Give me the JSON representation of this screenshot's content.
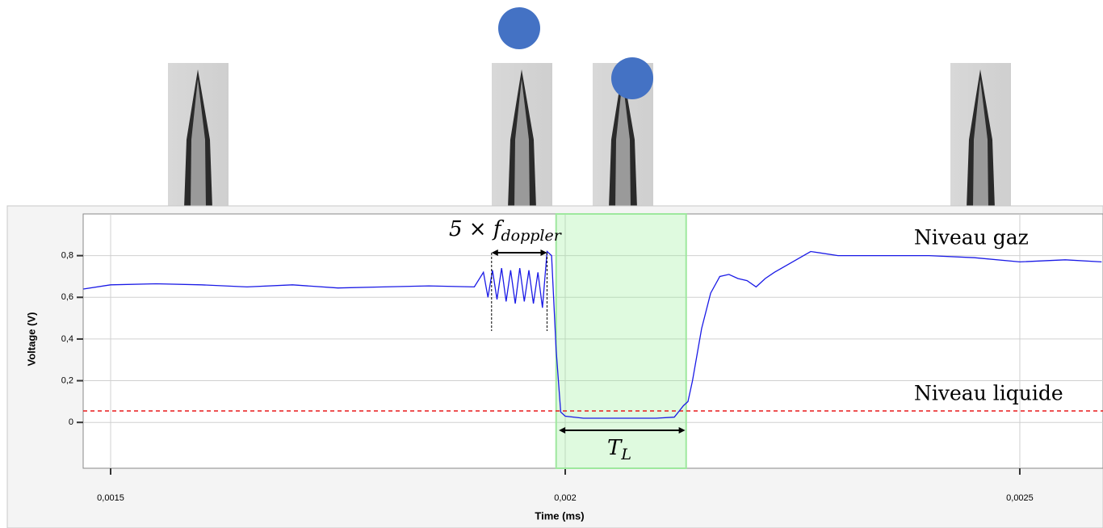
{
  "chart_data": {
    "type": "line",
    "x_label": "Time (ms)",
    "y_label": "Voltage (V)",
    "color": "#1a1ae6",
    "x": [
      0.00147,
      0.0015,
      0.00155,
      0.0016,
      0.00165,
      0.0017,
      0.00175,
      0.0018,
      0.00185,
      0.0019,
      0.00191,
      0.001915,
      0.00192,
      0.001925,
      0.00193,
      0.001935,
      0.00194,
      0.001945,
      0.00195,
      0.001955,
      0.00196,
      0.001965,
      0.00197,
      0.001975,
      0.00198,
      0.001985,
      0.00199,
      0.001995,
      0.002,
      0.00202,
      0.00205,
      0.0021,
      0.00212,
      0.00213,
      0.002135,
      0.00214,
      0.00215,
      0.00216,
      0.00217,
      0.00218,
      0.00219,
      0.0022,
      0.00221,
      0.00222,
      0.00223,
      0.00225,
      0.00227,
      0.0023,
      0.00235,
      0.0024,
      0.00245,
      0.0025,
      0.00255,
      0.00259
    ],
    "values": [
      0.64,
      0.66,
      0.665,
      0.66,
      0.65,
      0.66,
      0.645,
      0.65,
      0.655,
      0.65,
      0.72,
      0.6,
      0.73,
      0.59,
      0.74,
      0.58,
      0.73,
      0.57,
      0.74,
      0.58,
      0.73,
      0.57,
      0.72,
      0.55,
      0.82,
      0.8,
      0.35,
      0.05,
      0.03,
      0.02,
      0.02,
      0.02,
      0.025,
      0.08,
      0.1,
      0.2,
      0.45,
      0.62,
      0.7,
      0.71,
      0.69,
      0.68,
      0.65,
      0.69,
      0.72,
      0.77,
      0.82,
      0.8,
      0.8,
      0.8,
      0.79,
      0.77,
      0.78,
      0.77
    ],
    "xlim": [
      0.0014698,
      0.0025915
    ],
    "ylim": [
      -0.22,
      1.0
    ],
    "xticks": [
      {
        "value": 0.0015,
        "label": "0,0015"
      },
      {
        "value": 0.002,
        "label": "0,002"
      },
      {
        "value": 0.0025,
        "label": "0,0025"
      }
    ],
    "yticks": [
      0,
      {
        "value": 0.2,
        "label": "0,2"
      },
      {
        "value": 0.4,
        "label": "0,4"
      },
      {
        "value": 0.6,
        "label": "0,6"
      },
      {
        "value": 0.8,
        "label": "0,8"
      }
    ],
    "grid": true,
    "liquid_level": 0.055,
    "liquid_color": "#e8191a",
    "shaded_span": [
      0.00199,
      0.002133
    ],
    "doppler_span": [
      0.001919,
      0.00198
    ],
    "tl_span": [
      0.001993,
      0.002132
    ],
    "doppler_label": {
      "base": "5 × f",
      "subscript": "doppler"
    },
    "tl_label": {
      "base": "T",
      "subscript": "L"
    },
    "gas_label": "Niveau gaz",
    "liquid_label": "Niveau liquide"
  }
}
